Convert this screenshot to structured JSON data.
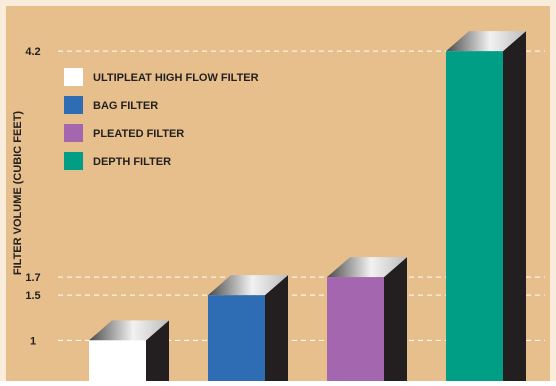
{
  "colors": {
    "background": "#e6bf8c",
    "frame": "#f9ecdb",
    "gridline": "#ffffff",
    "side_face": "#231f20",
    "text": "#231f20"
  },
  "chart_data": {
    "type": "bar",
    "title": "",
    "xlabel": "",
    "ylabel": "FILTER VOLUME (CUBIC FEET)",
    "yticks": [
      1,
      1.5,
      1.7,
      4.2
    ],
    "ytick_labels": [
      "1",
      "1.5",
      "1.7",
      "4.2"
    ],
    "ylim": [
      0.55,
      4.6
    ],
    "grid": "dashed horizontal lines at tick values",
    "legend_position": "top-left",
    "series": [
      {
        "name": "ULTIPLEAT HIGH FLOW FILTER",
        "value": 1.0,
        "color": "#ffffff"
      },
      {
        "name": "BAG FILTER",
        "value": 1.5,
        "color": "#2e6db4"
      },
      {
        "name": "PLEATED FILTER",
        "value": 1.7,
        "color": "#a466ae"
      },
      {
        "name": "DEPTH FILTER",
        "value": 4.2,
        "color": "#009e84"
      }
    ],
    "style": "3d-bar"
  }
}
